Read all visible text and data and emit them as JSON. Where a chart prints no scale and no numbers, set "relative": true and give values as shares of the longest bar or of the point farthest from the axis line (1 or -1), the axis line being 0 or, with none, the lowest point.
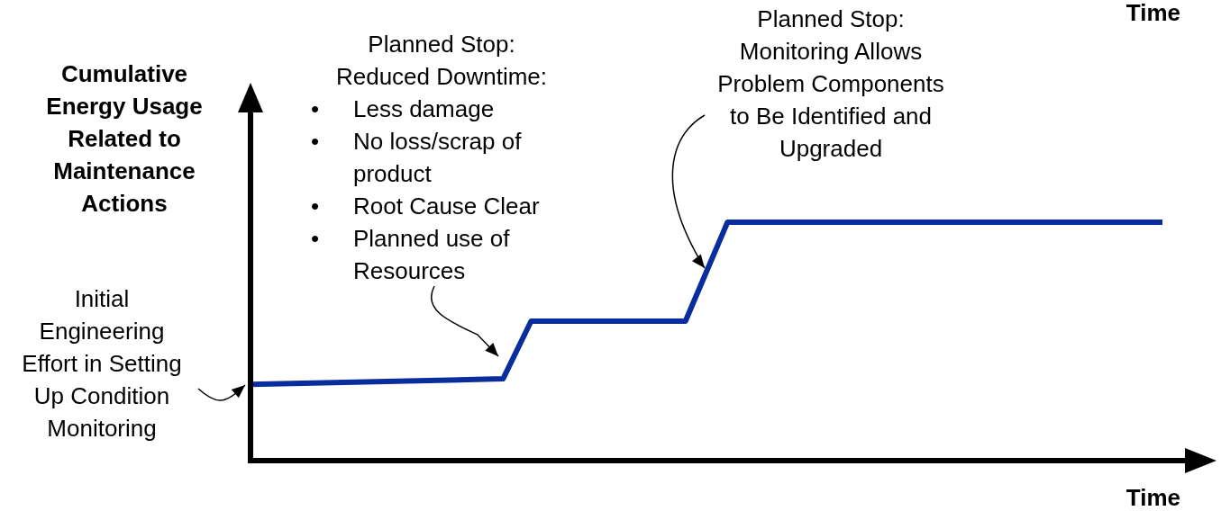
{
  "chart_data": {
    "type": "line",
    "relative": true,
    "xlabel": "Time",
    "ylabel": "Cumulative Energy Usage Related to Maintenance Actions",
    "categories": [
      null,
      null,
      null,
      null,
      null,
      null,
      null,
      null,
      null,
      null,
      null,
      null,
      null,
      null,
      null,
      null,
      null,
      null,
      null,
      null,
      null,
      null,
      null,
      null,
      null,
      null,
      null,
      null,
      null,
      null,
      null,
      null,
      null,
      null,
      null,
      null,
      null,
      null,
      null,
      null,
      null,
      null,
      null,
      null,
      null,
      null,
      null,
      null,
      null,
      null,
      null,
      null,
      null,
      null,
      null,
      null,
      null,
      null,
      null,
      null,
      null,
      null,
      null,
      null,
      null,
      null
    ],
    "series": [
      {
        "color": "#0a2d9e",
        "values": [
          0.32,
          null,
          null,
          null,
          null,
          null,
          null,
          null,
          null,
          null,
          null,
          null,
          null,
          null,
          null,
          null,
          null,
          null,
          0.343,
          null,
          0.585,
          null,
          null,
          null,
          null,
          null,
          null,
          null,
          null,
          null,
          null,
          0.585,
          null,
          null,
          1,
          null,
          null,
          null,
          null,
          null,
          null,
          null,
          null,
          null,
          null,
          null,
          null,
          null,
          null,
          null,
          null,
          null,
          null,
          null,
          null,
          null,
          null,
          null,
          null,
          null,
          null,
          null,
          null,
          null,
          null,
          1
        ]
      }
    ],
    "annotations": [
      "Time",
      "Initial\nEngineering\nEffort in Setting\nUp Condition\nMonitoring",
      "Planned Stop:\nReduced Downtime:\n• Less damage\n• No loss/scrap of product\n• Root Cause Clear\n• Planned use of Resources",
      "Planned Stop:\nMonitoring Allows\nProblem Components\nto Be Identified and\nUpgraded"
    ]
  }
}
